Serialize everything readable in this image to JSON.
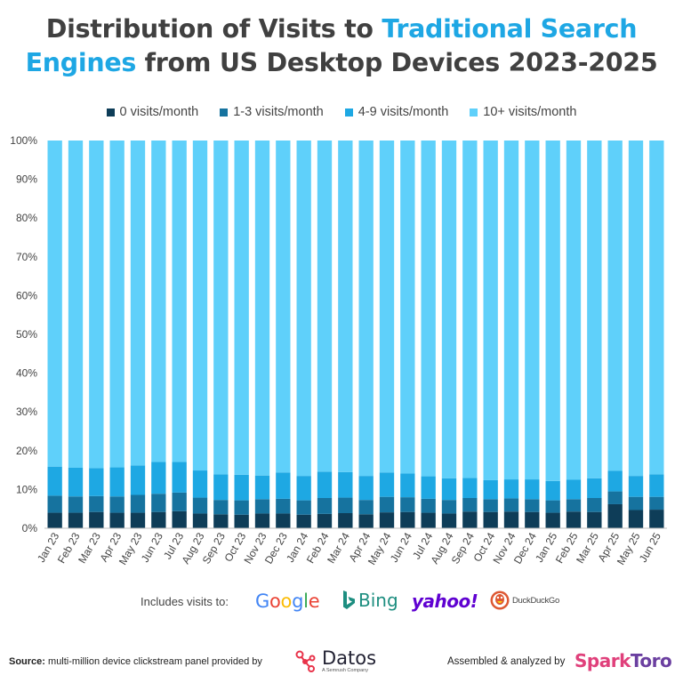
{
  "title": {
    "part1": "Distribution of Visits to ",
    "highlight1": "Traditional Search",
    "highlight2": "Engines",
    "part2": " from US Desktop Devices 2023-2025"
  },
  "colors": {
    "title_text": "#404040",
    "title_highlight": "#1ea7e4",
    "series": [
      "#0e3d58",
      "#16739f",
      "#1ea8e3",
      "#5fd0fa"
    ]
  },
  "chart_data": {
    "type": "bar",
    "stacked": true,
    "categories": [
      "Jan 23",
      "Feb 23",
      "Mar 23",
      "Apr 23",
      "May 23",
      "Jun 23",
      "Jul 23",
      "Aug 23",
      "Sep 23",
      "Oct 23",
      "Nov 23",
      "Dec 23",
      "Jan 24",
      "Feb 24",
      "Mar 24",
      "Apr 24",
      "May 24",
      "Jun 24",
      "Jul 24",
      "Aug 24",
      "Sep 24",
      "Oct 24",
      "Nov 24",
      "Dec 24",
      "Jan 25",
      "Feb 25",
      "Mar 25",
      "Apr 25",
      "May 25",
      "Jun 25"
    ],
    "series": [
      {
        "name": "0 visits/month",
        "values": [
          4.0,
          4.0,
          4.2,
          4.0,
          4.0,
          4.2,
          4.4,
          3.8,
          3.6,
          3.5,
          3.8,
          3.8,
          3.5,
          3.7,
          3.9,
          3.6,
          4.1,
          4.2,
          4.0,
          3.8,
          4.3,
          4.2,
          4.3,
          4.2,
          4.0,
          4.3,
          4.2,
          6.2,
          4.7,
          4.8
        ]
      },
      {
        "name": "1-3 visits/month",
        "values": [
          4.4,
          4.2,
          4.1,
          4.2,
          4.6,
          4.7,
          4.8,
          4.1,
          3.7,
          3.7,
          3.7,
          3.8,
          3.7,
          4.1,
          4.0,
          3.7,
          4.0,
          3.8,
          3.6,
          3.5,
          3.5,
          3.3,
          3.4,
          3.3,
          3.2,
          3.2,
          3.6,
          3.3,
          3.4,
          3.3
        ]
      },
      {
        "name": "4-9 visits/month",
        "values": [
          7.5,
          7.4,
          7.2,
          7.5,
          7.6,
          8.2,
          7.9,
          7.0,
          6.6,
          6.6,
          6.1,
          6.8,
          6.3,
          6.8,
          6.6,
          6.2,
          6.3,
          6.1,
          5.8,
          5.6,
          5.2,
          4.9,
          4.9,
          5.1,
          5.0,
          5.0,
          5.1,
          5.3,
          5.4,
          5.8
        ]
      },
      {
        "name": "10+ visits/month",
        "values": [
          84.1,
          84.4,
          84.5,
          84.3,
          83.8,
          82.9,
          82.9,
          85.1,
          86.1,
          86.2,
          86.4,
          85.6,
          86.5,
          85.4,
          85.5,
          86.5,
          85.6,
          85.9,
          86.6,
          87.1,
          87.0,
          87.6,
          87.4,
          87.4,
          87.8,
          87.5,
          87.1,
          85.2,
          86.5,
          86.1
        ]
      }
    ],
    "y_ticks": [
      "0%",
      "10%",
      "20%",
      "30%",
      "40%",
      "50%",
      "60%",
      "70%",
      "80%",
      "90%",
      "100%"
    ],
    "ylim": [
      0,
      100
    ],
    "legend": "top",
    "grid": false
  },
  "includes": {
    "label": "Includes visits to:",
    "logos": [
      "Google",
      "Bing",
      "yahoo!",
      "DuckDuckGo"
    ]
  },
  "footer": {
    "source_label": "Source:",
    "source_text": " multi-million device clickstream panel provided by",
    "datos_name": "Datos",
    "datos_sub": "A Semrush Company",
    "assembled": "Assembled & analyzed by",
    "sparktoro": "SparkToro"
  }
}
